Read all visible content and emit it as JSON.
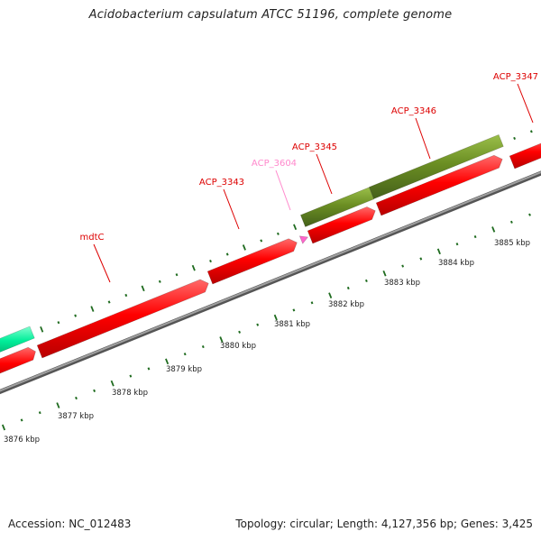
{
  "title": "Acidobacterium capsulatum ATCC 51196, complete genome",
  "footer": {
    "accession": "Accession: NC_012483",
    "summary": "Topology: circular; Length: 4,127,356 bp; Genes: 3,425"
  },
  "colors": {
    "gene_forward": "#ff0000",
    "gene_olive": "#6b8e23",
    "gene_cyan": "#00ee99",
    "gene_pink": "#ff66cc",
    "label_red": "#dd0000",
    "label_pink": "#ff88cc",
    "backbone": "#888888",
    "ticks": "#1f6b1f"
  },
  "ticks": [
    {
      "label": "3876 kbp",
      "kbp": 3876
    },
    {
      "label": "3877 kbp",
      "kbp": 3877
    },
    {
      "label": "3878 kbp",
      "kbp": 3878
    },
    {
      "label": "3879 kbp",
      "kbp": 3879
    },
    {
      "label": "3880 kbp",
      "kbp": 3880
    },
    {
      "label": "3881 kbp",
      "kbp": 3881
    },
    {
      "label": "3882 kbp",
      "kbp": 3882
    },
    {
      "label": "3883 kbp",
      "kbp": 3883
    },
    {
      "label": "3884 kbp",
      "kbp": 3884
    },
    {
      "label": "3885 kbp",
      "kbp": 3885
    }
  ],
  "gene_labels": [
    {
      "name": "mdtC",
      "color": "red"
    },
    {
      "name": "ACP_3343",
      "color": "red"
    },
    {
      "name": "ACP_3604",
      "color": "pink"
    },
    {
      "name": "ACP_3345",
      "color": "red"
    },
    {
      "name": "ACP_3346",
      "color": "red"
    },
    {
      "name": "ACP_3347",
      "color": "red"
    }
  ]
}
